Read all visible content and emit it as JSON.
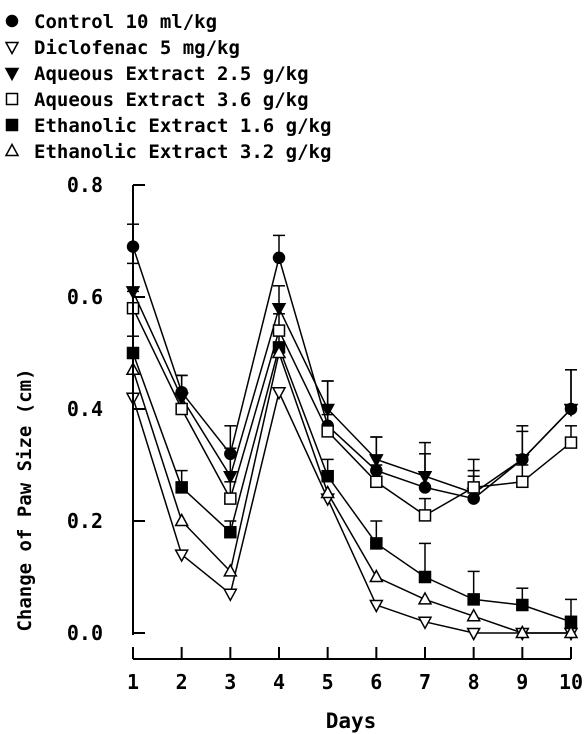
{
  "chart_data": {
    "type": "line",
    "title": "",
    "xlabel": "Days",
    "ylabel": "Change of Paw Size (cm)",
    "x": [
      1,
      2,
      3,
      4,
      5,
      6,
      7,
      8,
      9,
      10
    ],
    "xlim": [
      1,
      10
    ],
    "ylim": [
      0.0,
      0.8
    ],
    "x_ticks": [
      "1",
      "2",
      "3",
      "4",
      "5",
      "6",
      "7",
      "8",
      "9",
      "10"
    ],
    "y_ticks": [
      "0.0",
      "0.2",
      "0.4",
      "0.6",
      "0.8"
    ],
    "y_tick_values": [
      0.0,
      0.2,
      0.4,
      0.6,
      0.8
    ],
    "grid": false,
    "legend_position": "top-left, above plot",
    "series": [
      {
        "name": "Control 10 ml/kg",
        "marker": "circle-filled",
        "values": [
          0.69,
          0.43,
          0.32,
          0.67,
          0.37,
          0.29,
          0.26,
          0.24,
          0.31,
          0.4
        ],
        "errors": [
          0.04,
          0.03,
          0.05,
          0.04,
          0.08,
          0.06,
          0.08,
          0.07,
          0.06,
          0.07
        ]
      },
      {
        "name": "Diclofenac 5 mg/kg",
        "marker": "triangle-down-open",
        "values": [
          0.42,
          0.14,
          0.07,
          0.43,
          0.24,
          0.05,
          0.02,
          0.0,
          0.0,
          0.0
        ],
        "errors": [
          0.0,
          0.0,
          0.0,
          0.0,
          0.0,
          0.0,
          0.0,
          0.0,
          0.0,
          0.0
        ]
      },
      {
        "name": "Aqueous Extract 2.5 g/kg",
        "marker": "triangle-down-filled",
        "values": [
          0.61,
          0.42,
          0.28,
          0.58,
          0.4,
          0.31,
          0.28,
          0.25,
          0.31,
          0.4
        ],
        "errors": [
          0.05,
          0.04,
          0.05,
          0.04,
          0.05,
          0.04,
          0.04,
          0.03,
          0.05,
          0.07
        ]
      },
      {
        "name": "Aqueous Extract 3.6 g/kg",
        "marker": "square-open",
        "values": [
          0.58,
          0.4,
          0.24,
          0.54,
          0.36,
          0.27,
          0.21,
          0.26,
          0.27,
          0.34
        ],
        "errors": [
          0.03,
          0.03,
          0.03,
          0.03,
          0.03,
          0.03,
          0.03,
          0.03,
          0.03,
          0.03
        ]
      },
      {
        "name": "Ethanolic Extract 1.6 g/kg",
        "marker": "square-filled",
        "values": [
          0.5,
          0.26,
          0.18,
          0.51,
          0.28,
          0.16,
          0.1,
          0.06,
          0.05,
          0.02
        ],
        "errors": [
          0.03,
          0.03,
          0.02,
          0.03,
          0.03,
          0.04,
          0.06,
          0.05,
          0.03,
          0.04
        ]
      },
      {
        "name": "Ethanolic Extract 3.2 g/kg",
        "marker": "triangle-up-open",
        "values": [
          0.47,
          0.2,
          0.11,
          0.5,
          0.25,
          0.1,
          0.06,
          0.03,
          0.0,
          0.0
        ],
        "errors": [
          0.0,
          0.0,
          0.0,
          0.0,
          0.0,
          0.0,
          0.0,
          0.0,
          0.0,
          0.0
        ]
      }
    ]
  }
}
